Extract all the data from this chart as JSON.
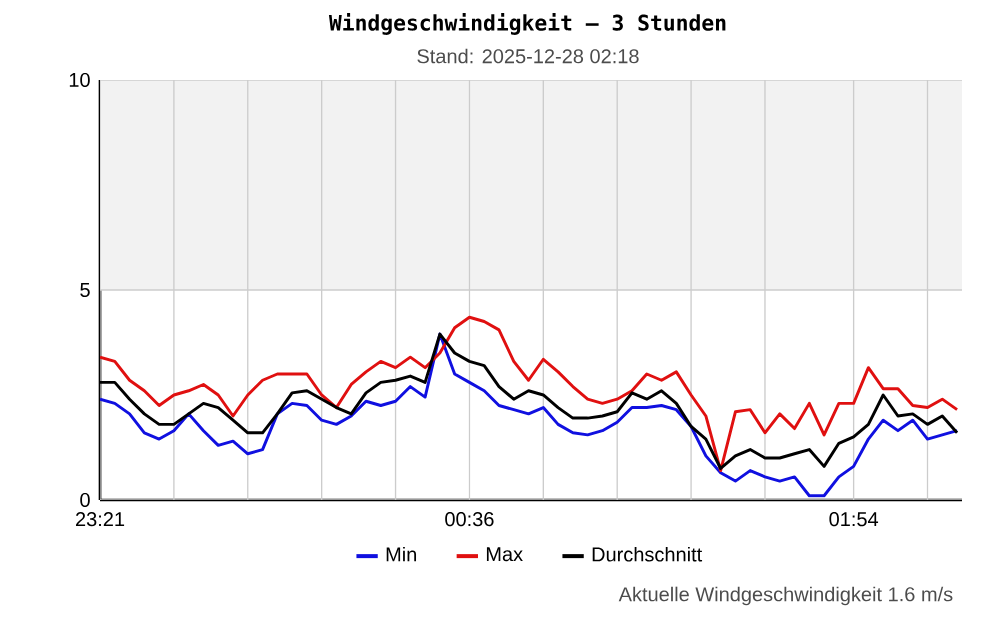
{
  "chart_data": {
    "type": "line",
    "title": "Windgeschwindigkeit – 3 Stunden",
    "subtitle": "Stand: 2025-12-28 02:18",
    "annotations": [
      "Aktuelle Windgeschwindigkeit 1.6 m/s"
    ],
    "x": [
      "2025-12-27T23:21",
      "2025-12-27T23:24",
      "2025-12-27T23:27",
      "2025-12-27T23:30",
      "2025-12-27T23:33",
      "2025-12-27T23:36",
      "2025-12-27T23:39",
      "2025-12-27T23:42",
      "2025-12-27T23:45",
      "2025-12-27T23:48",
      "2025-12-27T23:51",
      "2025-12-27T23:54",
      "2025-12-27T23:57",
      "2025-12-28T00:00",
      "2025-12-28T00:03",
      "2025-12-28T00:06",
      "2025-12-28T00:09",
      "2025-12-28T00:12",
      "2025-12-28T00:15",
      "2025-12-28T00:18",
      "2025-12-28T00:21",
      "2025-12-28T00:24",
      "2025-12-28T00:27",
      "2025-12-28T00:30",
      "2025-12-28T00:33",
      "2025-12-28T00:36",
      "2025-12-28T00:39",
      "2025-12-28T00:42",
      "2025-12-28T00:45",
      "2025-12-28T00:48",
      "2025-12-28T00:51",
      "2025-12-28T00:54",
      "2025-12-28T00:57",
      "2025-12-28T01:00",
      "2025-12-28T01:03",
      "2025-12-28T01:06",
      "2025-12-28T01:09",
      "2025-12-28T01:12",
      "2025-12-28T01:15",
      "2025-12-28T01:18",
      "2025-12-28T01:21",
      "2025-12-28T01:24",
      "2025-12-28T01:27",
      "2025-12-28T01:30",
      "2025-12-28T01:33",
      "2025-12-28T01:36",
      "2025-12-28T01:39",
      "2025-12-28T01:42",
      "2025-12-28T01:45",
      "2025-12-28T01:48",
      "2025-12-28T01:51",
      "2025-12-28T01:54",
      "2025-12-28T01:57",
      "2025-12-28T02:00",
      "2025-12-28T02:03",
      "2025-12-28T02:06",
      "2025-12-28T02:09",
      "2025-12-28T02:12",
      "2025-12-28T02:15"
    ],
    "xlim": [
      "2025-12-27T23:21",
      "2025-12-28T02:16"
    ],
    "xticks": [
      {
        "value": "2025-12-27T23:21",
        "label": "23:21"
      },
      {
        "value": "2025-12-27T23:36",
        "label": null
      },
      {
        "value": "2025-12-27T23:51",
        "label": null
      },
      {
        "value": "2025-12-28T00:06",
        "label": null
      },
      {
        "value": "2025-12-28T00:21",
        "label": null
      },
      {
        "value": "2025-12-28T00:36",
        "label": "00:36"
      },
      {
        "value": "2025-12-28T00:51",
        "label": null
      },
      {
        "value": "2025-12-28T01:06",
        "label": null
      },
      {
        "value": "2025-12-28T01:21",
        "label": null
      },
      {
        "value": "2025-12-28T01:36",
        "label": null
      },
      {
        "value": "2025-12-28T01:54",
        "label": "01:54"
      },
      {
        "value": "2025-12-28T02:09",
        "label": null
      }
    ],
    "ylim": [
      0,
      10
    ],
    "yticks": [
      0,
      5,
      10
    ],
    "grid": true,
    "legend": "bottom",
    "bands": [
      {
        "axis": "y",
        "from": 5,
        "to": 10,
        "color": "#f2f2f2"
      }
    ],
    "series": [
      {
        "name": "Min",
        "color": "#1010e0",
        "values": [
          2.4,
          2.3,
          2.05,
          1.6,
          1.45,
          1.65,
          2.05,
          1.65,
          1.3,
          1.4,
          1.1,
          1.2,
          2.05,
          2.3,
          2.25,
          1.9,
          1.8,
          2.0,
          2.35,
          2.25,
          2.35,
          2.7,
          2.45,
          3.95,
          3.0,
          2.8,
          2.6,
          2.25,
          2.15,
          2.05,
          2.2,
          1.8,
          1.6,
          1.55,
          1.65,
          1.85,
          2.2,
          2.2,
          2.25,
          2.15,
          1.75,
          1.05,
          0.65,
          0.45,
          0.7,
          0.55,
          0.45,
          0.55,
          0.1,
          0.1,
          0.55,
          0.8,
          1.45,
          1.9,
          1.65,
          1.9,
          1.45,
          1.55,
          1.65
        ]
      },
      {
        "name": "Max",
        "color": "#e01010",
        "values": [
          3.4,
          3.3,
          2.85,
          2.6,
          2.25,
          2.5,
          2.6,
          2.75,
          2.5,
          2.0,
          2.5,
          2.85,
          3.0,
          3.0,
          3.0,
          2.5,
          2.2,
          2.75,
          3.05,
          3.3,
          3.15,
          3.4,
          3.15,
          3.5,
          4.1,
          4.35,
          4.25,
          4.05,
          3.3,
          2.85,
          3.35,
          3.05,
          2.7,
          2.4,
          2.3,
          2.4,
          2.6,
          3.0,
          2.85,
          3.05,
          2.5,
          2.0,
          0.7,
          2.1,
          2.15,
          1.6,
          2.05,
          1.7,
          2.3,
          1.55,
          2.3,
          2.3,
          3.15,
          2.65,
          2.65,
          2.25,
          2.2,
          2.4,
          2.15
        ]
      },
      {
        "name": "Durchschnitt",
        "color": "#000000",
        "values": [
          2.8,
          2.8,
          2.4,
          2.05,
          1.8,
          1.8,
          2.05,
          2.3,
          2.2,
          1.9,
          1.6,
          1.6,
          2.05,
          2.55,
          2.6,
          2.4,
          2.2,
          2.05,
          2.55,
          2.8,
          2.85,
          2.95,
          2.8,
          3.95,
          3.5,
          3.3,
          3.2,
          2.7,
          2.4,
          2.6,
          2.5,
          2.2,
          1.95,
          1.95,
          2.0,
          2.1,
          2.55,
          2.4,
          2.6,
          2.3,
          1.75,
          1.45,
          0.75,
          1.05,
          1.2,
          1.0,
          1.0,
          1.1,
          1.2,
          0.8,
          1.35,
          1.5,
          1.8,
          2.5,
          2.0,
          2.05,
          1.8,
          2.0,
          1.6
        ]
      }
    ]
  }
}
